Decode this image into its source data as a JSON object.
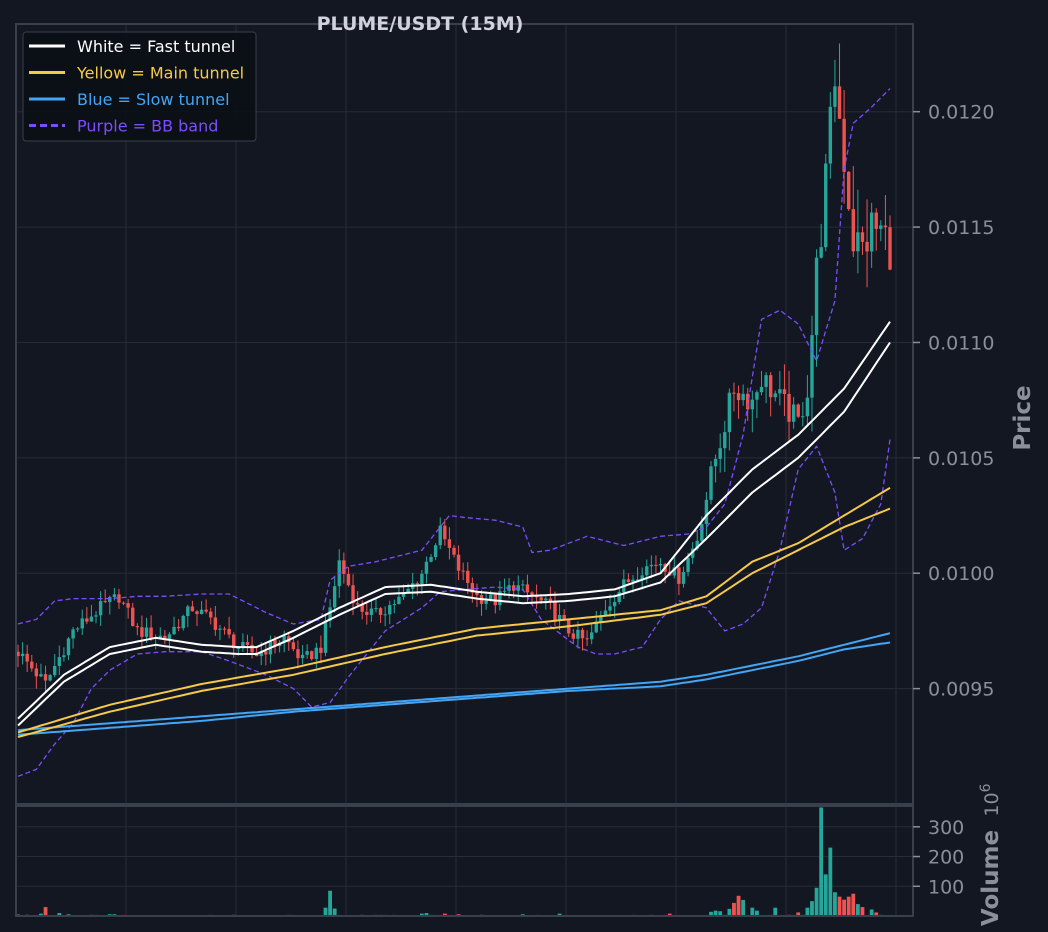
{
  "colors": {
    "background": "#131722",
    "grid": "#262b38",
    "frame": "#3a3f4c",
    "bull": "#26a69a",
    "bear": "#ef5350",
    "fast": "#ffffff",
    "main": "#f7c948",
    "slow": "#42a5f5",
    "bb": "#7c4dff",
    "volume_up": "#26a69a",
    "volume_down": "#ef5350"
  },
  "chart_data": [
    {
      "type": "candlestick",
      "title": "PLUME/USDT (15M)",
      "ylabel": "Price",
      "xlabel": "",
      "ylim": [
        0.009,
        0.01238
      ],
      "y_ticks": [
        "0.0095",
        "0.0100",
        "0.0105",
        "0.0110",
        "0.0115",
        "0.0120"
      ],
      "grid": true,
      "legend_position": "top-left",
      "legend": [
        {
          "label": "White = Fast tunnel",
          "color": "#ffffff",
          "style": "solid"
        },
        {
          "label": "Yellow = Main tunnel",
          "color": "#f7c948",
          "style": "solid"
        },
        {
          "label": "Blue = Slow tunnel",
          "color": "#42a5f5",
          "style": "solid"
        },
        {
          "label": "Purple = BB band",
          "color": "#7c4dff",
          "style": "dashed"
        }
      ],
      "close_anchors": [
        [
          0,
          0.00966
        ],
        [
          6,
          0.00952
        ],
        [
          12,
          0.00975
        ],
        [
          18,
          0.00985
        ],
        [
          22,
          0.0099
        ],
        [
          26,
          0.00975
        ],
        [
          32,
          0.00972
        ],
        [
          38,
          0.00985
        ],
        [
          42,
          0.0098
        ],
        [
          48,
          0.00968
        ],
        [
          52,
          0.00965
        ],
        [
          58,
          0.00972
        ],
        [
          62,
          0.00962
        ],
        [
          66,
          0.00968
        ],
        [
          68,
          0.00985
        ],
        [
          70,
          0.01005
        ],
        [
          74,
          0.00985
        ],
        [
          78,
          0.00982
        ],
        [
          84,
          0.0099
        ],
        [
          88,
          0.01
        ],
        [
          92,
          0.01018
        ],
        [
          96,
          0.01002
        ],
        [
          100,
          0.0099
        ],
        [
          104,
          0.00988
        ],
        [
          108,
          0.00995
        ],
        [
          112,
          0.0099
        ],
        [
          116,
          0.00985
        ],
        [
          120,
          0.00975
        ],
        [
          124,
          0.0097
        ],
        [
          128,
          0.00985
        ],
        [
          132,
          0.00995
        ],
        [
          136,
          0.01002
        ],
        [
          140,
          0.01005
        ],
        [
          144,
          0.00998
        ],
        [
          148,
          0.01015
        ],
        [
          152,
          0.0105
        ],
        [
          156,
          0.0108
        ],
        [
          160,
          0.01075
        ],
        [
          162,
          0.01085
        ],
        [
          166,
          0.01075
        ],
        [
          170,
          0.01065
        ],
        [
          172,
          0.0108
        ],
        [
          174,
          0.0113
        ],
        [
          176,
          0.0117
        ],
        [
          178,
          0.01215
        ],
        [
          180,
          0.0118
        ],
        [
          182,
          0.01145
        ],
        [
          184,
          0.0114
        ],
        [
          186,
          0.0115
        ],
        [
          188,
          0.01148
        ],
        [
          190,
          0.01142
        ]
      ],
      "fast_tunnel": {
        "upper": [
          [
            0,
            0.00937
          ],
          [
            10,
            0.00956
          ],
          [
            20,
            0.00968
          ],
          [
            30,
            0.00972
          ],
          [
            40,
            0.00969
          ],
          [
            48,
            0.00968
          ],
          [
            52,
            0.00968
          ],
          [
            60,
            0.00975
          ],
          [
            70,
            0.00985
          ],
          [
            80,
            0.00994
          ],
          [
            90,
            0.00995
          ],
          [
            100,
            0.00992
          ],
          [
            110,
            0.0099
          ],
          [
            120,
            0.00991
          ],
          [
            130,
            0.00993
          ],
          [
            140,
            0.01
          ],
          [
            150,
            0.01025
          ],
          [
            160,
            0.01045
          ],
          [
            170,
            0.0106
          ],
          [
            180,
            0.0108
          ],
          [
            190,
            0.01109
          ]
        ],
        "lower": [
          [
            0,
            0.00934
          ],
          [
            10,
            0.00953
          ],
          [
            20,
            0.00965
          ],
          [
            30,
            0.00969
          ],
          [
            40,
            0.00966
          ],
          [
            48,
            0.00965
          ],
          [
            52,
            0.00965
          ],
          [
            60,
            0.00972
          ],
          [
            70,
            0.00982
          ],
          [
            80,
            0.00991
          ],
          [
            90,
            0.00992
          ],
          [
            100,
            0.00989
          ],
          [
            110,
            0.00987
          ],
          [
            120,
            0.00988
          ],
          [
            130,
            0.0099
          ],
          [
            140,
            0.00996
          ],
          [
            150,
            0.01015
          ],
          [
            160,
            0.01035
          ],
          [
            170,
            0.0105
          ],
          [
            180,
            0.0107
          ],
          [
            190,
            0.011
          ]
        ]
      },
      "main_tunnel": {
        "upper": [
          [
            0,
            0.00931
          ],
          [
            20,
            0.00943
          ],
          [
            40,
            0.00952
          ],
          [
            60,
            0.00959
          ],
          [
            80,
            0.00968
          ],
          [
            100,
            0.00976
          ],
          [
            120,
            0.0098
          ],
          [
            140,
            0.00984
          ],
          [
            150,
            0.0099
          ],
          [
            160,
            0.01005
          ],
          [
            170,
            0.01013
          ],
          [
            180,
            0.01025
          ],
          [
            190,
            0.01037
          ]
        ],
        "lower": [
          [
            0,
            0.00929
          ],
          [
            20,
            0.0094
          ],
          [
            40,
            0.00949
          ],
          [
            60,
            0.00956
          ],
          [
            80,
            0.00965
          ],
          [
            100,
            0.00973
          ],
          [
            120,
            0.00977
          ],
          [
            140,
            0.00982
          ],
          [
            150,
            0.00987
          ],
          [
            160,
            0.01
          ],
          [
            170,
            0.0101
          ],
          [
            180,
            0.0102
          ],
          [
            190,
            0.01028
          ]
        ]
      },
      "slow_tunnel": {
        "upper": [
          [
            0,
            0.00932
          ],
          [
            20,
            0.00935
          ],
          [
            40,
            0.00938
          ],
          [
            60,
            0.00941
          ],
          [
            80,
            0.00944
          ],
          [
            100,
            0.00947
          ],
          [
            120,
            0.0095
          ],
          [
            140,
            0.00953
          ],
          [
            150,
            0.00956
          ],
          [
            160,
            0.0096
          ],
          [
            170,
            0.00964
          ],
          [
            180,
            0.00969
          ],
          [
            190,
            0.00974
          ]
        ],
        "lower": [
          [
            0,
            0.0093
          ],
          [
            20,
            0.00933
          ],
          [
            40,
            0.00936
          ],
          [
            60,
            0.0094
          ],
          [
            80,
            0.00943
          ],
          [
            100,
            0.00946
          ],
          [
            120,
            0.00949
          ],
          [
            140,
            0.00951
          ],
          [
            150,
            0.00954
          ],
          [
            160,
            0.00958
          ],
          [
            170,
            0.00962
          ],
          [
            180,
            0.00967
          ],
          [
            190,
            0.0097
          ]
        ]
      },
      "bb_band": {
        "upper": [
          [
            0,
            0.00978
          ],
          [
            4,
            0.0098
          ],
          [
            8,
            0.00988
          ],
          [
            12,
            0.00989
          ],
          [
            20,
            0.00989
          ],
          [
            26,
            0.0099
          ],
          [
            32,
            0.0099
          ],
          [
            40,
            0.00991
          ],
          [
            46,
            0.00991
          ],
          [
            54,
            0.00983
          ],
          [
            60,
            0.00978
          ],
          [
            66,
            0.0098
          ],
          [
            68,
            0.00997
          ],
          [
            72,
            0.01003
          ],
          [
            78,
            0.01005
          ],
          [
            84,
            0.01008
          ],
          [
            88,
            0.0101
          ],
          [
            92,
            0.0102
          ],
          [
            94,
            0.01025
          ],
          [
            98,
            0.01024
          ],
          [
            104,
            0.01023
          ],
          [
            110,
            0.0102
          ],
          [
            112,
            0.01009
          ],
          [
            116,
            0.0101
          ],
          [
            120,
            0.01013
          ],
          [
            124,
            0.01016
          ],
          [
            128,
            0.01014
          ],
          [
            132,
            0.01012
          ],
          [
            140,
            0.01016
          ],
          [
            146,
            0.01017
          ],
          [
            150,
            0.0102
          ],
          [
            154,
            0.0103
          ],
          [
            158,
            0.0106
          ],
          [
            162,
            0.0111
          ],
          [
            166,
            0.01114
          ],
          [
            170,
            0.01108
          ],
          [
            174,
            0.01092
          ],
          [
            178,
            0.01118
          ],
          [
            180,
            0.01175
          ],
          [
            182,
            0.01195
          ],
          [
            186,
            0.01202
          ],
          [
            190,
            0.0121
          ]
        ],
        "lower": [
          [
            0,
            0.00912
          ],
          [
            4,
            0.00915
          ],
          [
            8,
            0.00926
          ],
          [
            12,
            0.00935
          ],
          [
            16,
            0.0095
          ],
          [
            20,
            0.00958
          ],
          [
            26,
            0.00965
          ],
          [
            32,
            0.00966
          ],
          [
            40,
            0.00966
          ],
          [
            46,
            0.00962
          ],
          [
            54,
            0.00956
          ],
          [
            60,
            0.0095
          ],
          [
            64,
            0.00942
          ],
          [
            68,
            0.00944
          ],
          [
            72,
            0.00955
          ],
          [
            76,
            0.00965
          ],
          [
            80,
            0.00975
          ],
          [
            84,
            0.0098
          ],
          [
            88,
            0.00985
          ],
          [
            92,
            0.00992
          ],
          [
            98,
            0.00993
          ],
          [
            104,
            0.00994
          ],
          [
            110,
            0.00993
          ],
          [
            114,
            0.0098
          ],
          [
            118,
            0.00974
          ],
          [
            122,
            0.00968
          ],
          [
            126,
            0.00965
          ],
          [
            130,
            0.00965
          ],
          [
            136,
            0.00968
          ],
          [
            140,
            0.0098
          ],
          [
            144,
            0.00988
          ],
          [
            150,
            0.00985
          ],
          [
            154,
            0.00975
          ],
          [
            158,
            0.00978
          ],
          [
            162,
            0.00985
          ],
          [
            166,
            0.0101
          ],
          [
            170,
            0.01045
          ],
          [
            174,
            0.01055
          ],
          [
            178,
            0.01035
          ],
          [
            180,
            0.0101
          ],
          [
            184,
            0.01015
          ],
          [
            188,
            0.0103
          ],
          [
            190,
            0.01058
          ]
        ]
      }
    },
    {
      "type": "bar",
      "ylabel": "Volume",
      "axis_multiplier": "10^6",
      "y_ticks": [
        "100",
        "200",
        "300"
      ],
      "ylim": [
        0,
        370
      ],
      "volume_events": [
        [
          0,
          5
        ],
        [
          2,
          4
        ],
        [
          5,
          8
        ],
        [
          6,
          30
        ],
        [
          9,
          10
        ],
        [
          11,
          6
        ],
        [
          20,
          6
        ],
        [
          21,
          6
        ],
        [
          67,
          28
        ],
        [
          68,
          85
        ],
        [
          69,
          25
        ],
        [
          88,
          8
        ],
        [
          89,
          10
        ],
        [
          93,
          8
        ],
        [
          96,
          6
        ],
        [
          110,
          6
        ],
        [
          118,
          8
        ],
        [
          142,
          8
        ],
        [
          151,
          14
        ],
        [
          152,
          18
        ],
        [
          153,
          16
        ],
        [
          155,
          24
        ],
        [
          156,
          44
        ],
        [
          157,
          68
        ],
        [
          158,
          54
        ],
        [
          160,
          28
        ],
        [
          161,
          18
        ],
        [
          165,
          28
        ],
        [
          170,
          12
        ],
        [
          172,
          28
        ],
        [
          173,
          50
        ],
        [
          174,
          95
        ],
        [
          175,
          365
        ],
        [
          176,
          140
        ],
        [
          177,
          230
        ],
        [
          178,
          80
        ],
        [
          179,
          65
        ],
        [
          180,
          55
        ],
        [
          181,
          65
        ],
        [
          182,
          75
        ],
        [
          183,
          40
        ],
        [
          184,
          30
        ],
        [
          186,
          22
        ],
        [
          187,
          12
        ]
      ]
    }
  ]
}
